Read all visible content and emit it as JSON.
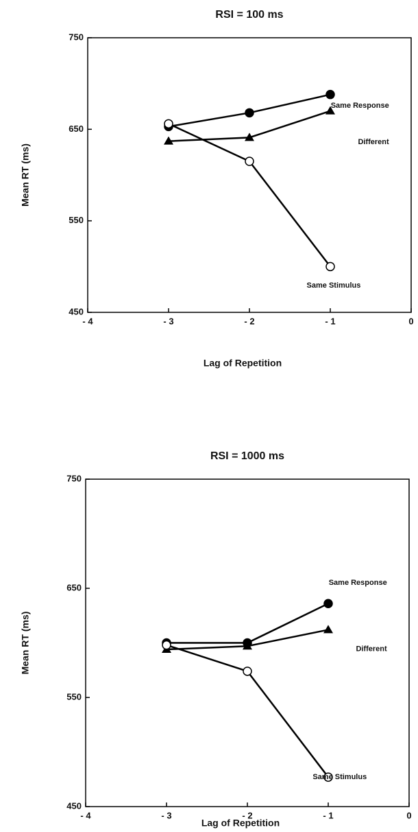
{
  "chart_data": [
    {
      "type": "line",
      "title": "RSI = 100 ms",
      "xlabel": "Lag of Repetition",
      "ylabel": "Mean RT (ms)",
      "x": [
        -3,
        -2,
        -1
      ],
      "xlim": [
        -4,
        0
      ],
      "xticks": [
        {
          "value": -4,
          "label": "- 4"
        },
        {
          "value": -3,
          "label": "- 3"
        },
        {
          "value": -2,
          "label": "- 2"
        },
        {
          "value": -1,
          "label": "- 1"
        },
        0
      ],
      "ylim": [
        450,
        750
      ],
      "yticks": [
        450,
        550,
        650,
        750
      ],
      "series": [
        {
          "name": "Same Response",
          "color": "#000",
          "marker": "circle-filled",
          "values": [
            653,
            668,
            688
          ]
        },
        {
          "name": "Different",
          "color": "#000",
          "marker": "triangle",
          "values": [
            637,
            641,
            670
          ]
        },
        {
          "name": "Same Stimulus",
          "color": "#000",
          "marker": "circle-open",
          "values": [
            656,
            615,
            500
          ]
        }
      ]
    },
    {
      "type": "line",
      "title": "RSI = 1000 ms",
      "xlabel": "Lag of Repetition",
      "ylabel": "Mean RT (ms)",
      "x": [
        -3,
        -2,
        -1
      ],
      "xlim": [
        -4,
        0
      ],
      "xticks": [
        {
          "value": -4,
          "label": "- 4"
        },
        {
          "value": -3,
          "label": "- 3"
        },
        {
          "value": -2,
          "label": "- 2"
        },
        {
          "value": -1,
          "label": "- 1"
        },
        0
      ],
      "ylim": [
        450,
        750
      ],
      "yticks": [
        450,
        550,
        650,
        750
      ],
      "series": [
        {
          "name": "Same Response",
          "color": "#000",
          "marker": "circle-filled",
          "values": [
            600,
            600,
            636
          ]
        },
        {
          "name": "Different",
          "color": "#000",
          "marker": "triangle",
          "values": [
            594,
            597,
            612
          ]
        },
        {
          "name": "Same Stimulus",
          "color": "#000",
          "marker": "circle-open",
          "values": [
            598,
            574,
            477
          ]
        }
      ]
    }
  ]
}
